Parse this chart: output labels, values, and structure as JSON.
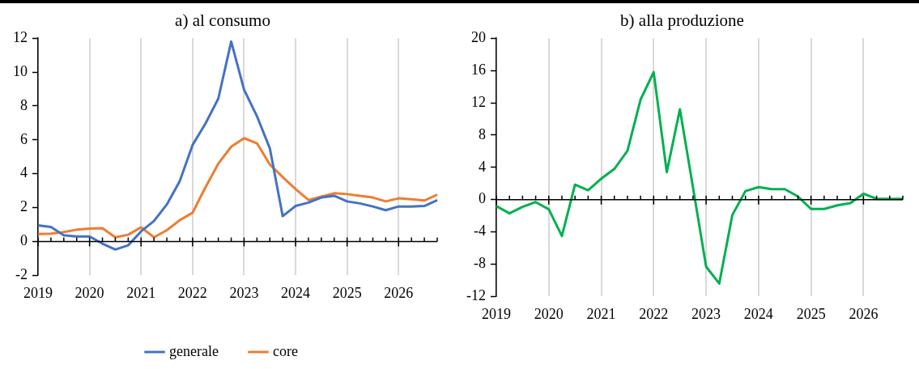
{
  "chart_data": [
    {
      "type": "line",
      "title": "a) al consumo",
      "categories": [
        "2019",
        null,
        null,
        null,
        "2020",
        null,
        null,
        null,
        "2021",
        null,
        null,
        null,
        "2022",
        null,
        null,
        null,
        "2023",
        null,
        null,
        null,
        "2024",
        null,
        null,
        null,
        "2025",
        null,
        null,
        null,
        "2026",
        null,
        null,
        null
      ],
      "series": [
        {
          "name": "generale",
          "color": "#4472c4",
          "values": [
            0.96,
            0.86,
            0.37,
            0.3,
            0.3,
            -0.12,
            -0.47,
            -0.22,
            0.6,
            1.21,
            2.19,
            3.56,
            5.7,
            6.96,
            8.44,
            11.8,
            8.96,
            7.4,
            5.5,
            1.5,
            2.1,
            2.3,
            2.6,
            2.7,
            2.37,
            2.25,
            2.07,
            1.85,
            2.07,
            2.07,
            2.1,
            2.44
          ]
        },
        {
          "name": "core",
          "color": "#ed7d31",
          "values": [
            0.44,
            0.47,
            0.56,
            0.7,
            0.77,
            0.79,
            0.25,
            0.4,
            0.84,
            0.25,
            0.67,
            1.26,
            1.7,
            3.2,
            4.6,
            5.6,
            6.1,
            5.8,
            4.55,
            3.8,
            3.1,
            2.45,
            2.65,
            2.85,
            2.8,
            2.7,
            2.6,
            2.37,
            2.55,
            2.5,
            2.42,
            2.77
          ]
        }
      ],
      "ylim": [
        -2,
        12
      ],
      "yticks": [
        -2,
        0,
        2,
        4,
        6,
        8,
        10,
        12
      ],
      "grid": "x",
      "legend": "bottom"
    },
    {
      "type": "line",
      "title": "b) alla produzione",
      "categories": [
        "2019",
        null,
        null,
        null,
        "2020",
        null,
        null,
        null,
        "2021",
        null,
        null,
        null,
        "2022",
        null,
        null,
        null,
        "2023",
        null,
        null,
        null,
        "2024",
        null,
        null,
        null,
        "2025",
        null,
        null,
        null,
        "2026",
        null,
        null,
        null
      ],
      "series": [
        {
          "color": "#00b050",
          "values": [
            -0.8,
            -1.7,
            -0.9,
            -0.3,
            -1.2,
            -4.5,
            1.85,
            1.15,
            2.6,
            3.8,
            6.05,
            12.4,
            15.8,
            3.4,
            11.2,
            1.5,
            -8.3,
            -10.4,
            -1.9,
            1.06,
            1.55,
            1.3,
            1.3,
            0.4,
            -1.16,
            -1.16,
            -0.7,
            -0.43,
            0.73,
            0.1,
            0.1,
            0.1
          ]
        }
      ],
      "ylim": [
        -12,
        20
      ],
      "yticks": [
        -12,
        -8,
        -4,
        0,
        4,
        8,
        12,
        16,
        20
      ],
      "grid": "x"
    }
  ]
}
